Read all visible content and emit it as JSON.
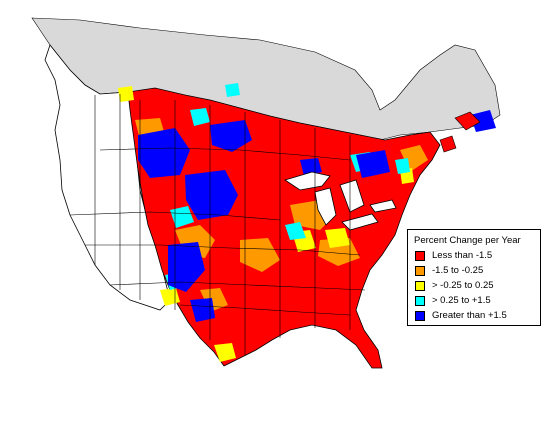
{
  "legend": {
    "title": "Percent Change per Year",
    "items": [
      {
        "label": "Less than -1.5",
        "color": "#ff0000"
      },
      {
        "label": "-1.5 to -0.25",
        "color": "#ff9900"
      },
      {
        "label": "> -0.25 to 0.25",
        "color": "#ffff00"
      },
      {
        "label": "> 0.25 to +1.5",
        "color": "#00ffff"
      },
      {
        "label": "Greater than +1.5",
        "color": "#0000ff"
      }
    ]
  },
  "colors": {
    "background": "#ffffff",
    "canada_north": "#d9d9d9",
    "boundaries": "#000000"
  }
}
